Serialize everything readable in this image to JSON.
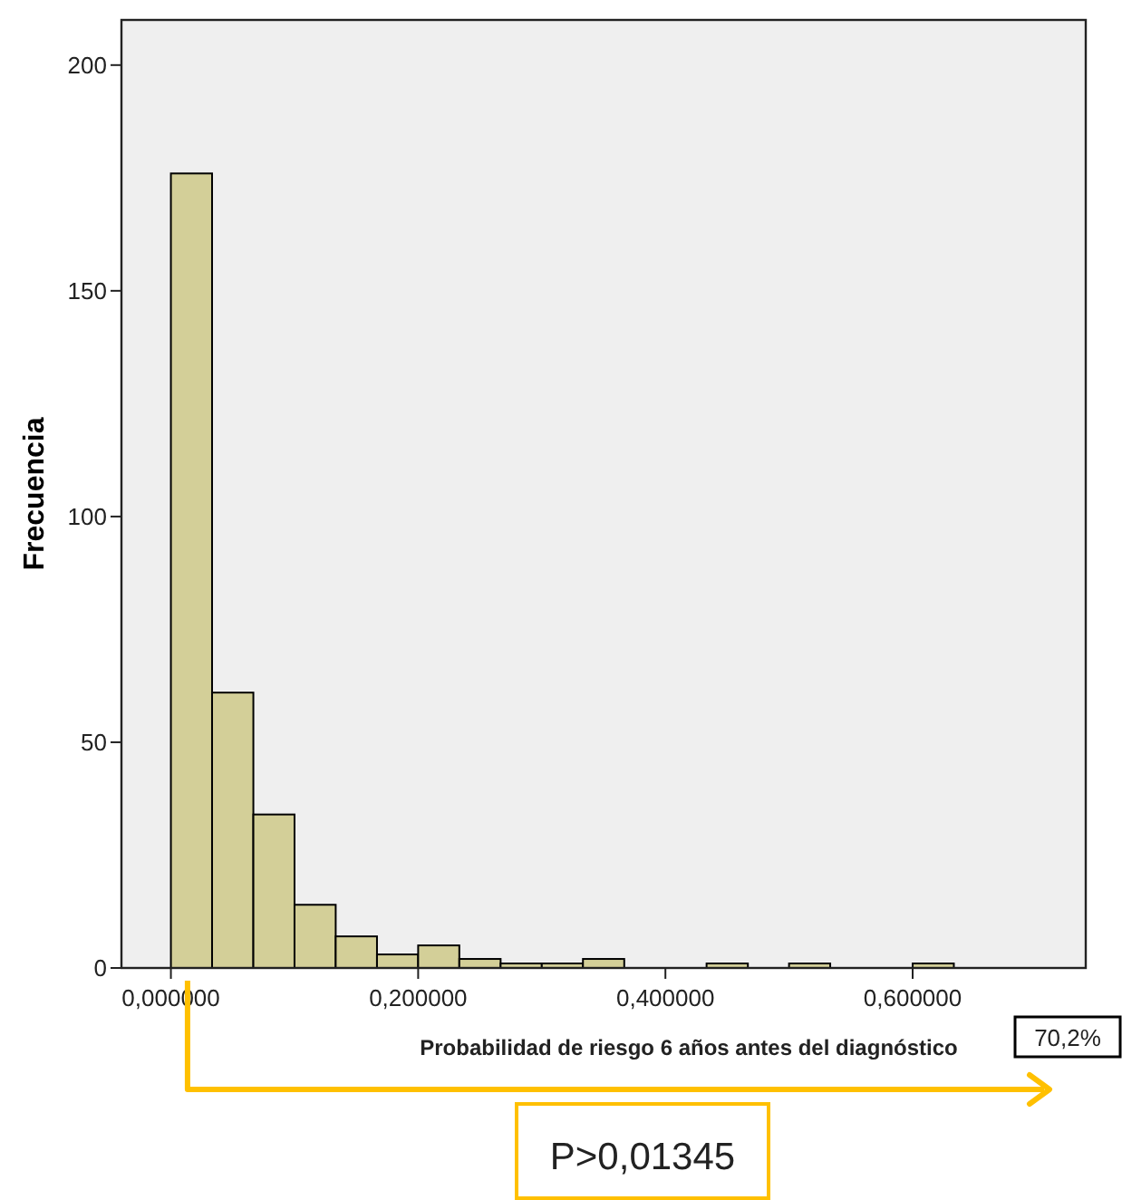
{
  "chart_data": {
    "type": "histogram",
    "xlabel": "Probabilidad de riesgo 6 años antes del diagnóstico",
    "ylabel": "Frecuencia",
    "bins": [
      0,
      0.0333,
      0.0667,
      0.1,
      0.1333,
      0.1667,
      0.2,
      0.2333,
      0.2667,
      0.3,
      0.3333,
      0.3667,
      0.4,
      0.4333,
      0.4667,
      0.5,
      0.5333,
      0.5667,
      0.6,
      0.6333
    ],
    "values": [
      176,
      61,
      34,
      14,
      7,
      3,
      5,
      2,
      1,
      1,
      2,
      0,
      0,
      1,
      0,
      1,
      0,
      0,
      1
    ],
    "color": "#d3cf98",
    "xlim": [
      -0.04,
      0.74
    ],
    "xticks": [
      {
        "value": 0,
        "label": "0,000000"
      },
      {
        "value": 0.2,
        "label": "0,200000"
      },
      {
        "value": 0.4,
        "label": "0,400000"
      },
      {
        "value": 0.6,
        "label": "0,600000"
      }
    ],
    "ylim": [
      0,
      210
    ],
    "yticks": [
      0,
      50,
      100,
      150,
      200
    ],
    "grid": false,
    "annotations": [
      "70,2%",
      "P>0,01345"
    ]
  }
}
